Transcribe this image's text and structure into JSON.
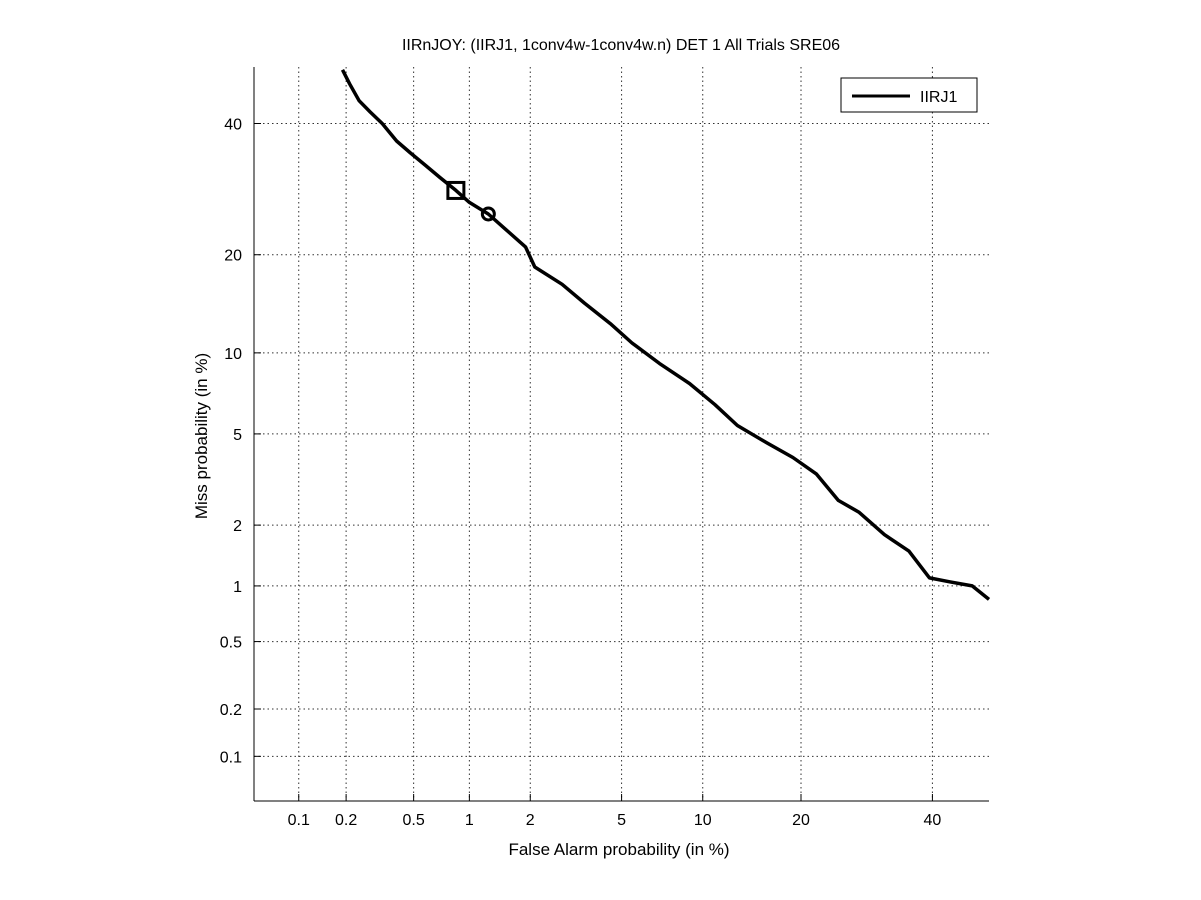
{
  "chart_data": {
    "type": "line",
    "title": "IIRnJOY: (IIRJ1, 1conv4w-1conv4w.n) DET 1 All Trials SRE06",
    "xlabel": "False Alarm probability (in %)",
    "ylabel": "Miss probability (in %)",
    "scale": "normal-deviate (probit)",
    "xlim": [
      0.05,
      50
    ],
    "ylim": [
      0.05,
      50
    ],
    "grid": true,
    "legend_position": "top-right",
    "x_ticks": [
      0.1,
      0.2,
      0.5,
      1,
      2,
      5,
      10,
      20,
      40
    ],
    "x_tick_labels": [
      "0.1",
      "0.2",
      "0.5",
      "1",
      "2",
      "5",
      "10",
      "20",
      "40"
    ],
    "y_ticks": [
      0.1,
      0.2,
      0.5,
      1,
      2,
      5,
      10,
      20,
      40
    ],
    "y_tick_labels": [
      "0.1",
      "0.2",
      "0.5",
      "1",
      "2",
      "5",
      "10",
      "20",
      "40"
    ],
    "series": [
      {
        "name": "IIRJ1",
        "color": "#000000",
        "points": [
          [
            0.19,
            49.5
          ],
          [
            0.21,
            47
          ],
          [
            0.24,
            44
          ],
          [
            0.28,
            42
          ],
          [
            0.33,
            40
          ],
          [
            0.4,
            37
          ],
          [
            0.48,
            35
          ],
          [
            0.58,
            33
          ],
          [
            0.7,
            31
          ],
          [
            0.85,
            29
          ],
          [
            1.0,
            27.2
          ],
          [
            1.25,
            25.5
          ],
          [
            1.5,
            23.5
          ],
          [
            1.9,
            21
          ],
          [
            2.1,
            18.5
          ],
          [
            2.8,
            16.5
          ],
          [
            3.5,
            14.5
          ],
          [
            4.5,
            12.5
          ],
          [
            5.5,
            10.8
          ],
          [
            7.0,
            9.2
          ],
          [
            9.0,
            7.8
          ],
          [
            11.0,
            6.5
          ],
          [
            13.0,
            5.4
          ],
          [
            16.0,
            4.6
          ],
          [
            19.0,
            4.0
          ],
          [
            22.0,
            3.4
          ],
          [
            25.0,
            2.6
          ],
          [
            28.0,
            2.3
          ],
          [
            32.0,
            1.8
          ],
          [
            36.0,
            1.5
          ],
          [
            39.5,
            1.1
          ],
          [
            43.0,
            1.05
          ],
          [
            47.0,
            1.0
          ],
          [
            50.0,
            0.85
          ]
        ]
      }
    ],
    "markers": [
      {
        "shape": "square",
        "x": 0.85,
        "y": 29
      },
      {
        "shape": "circle",
        "x": 1.25,
        "y": 25.5
      }
    ]
  }
}
